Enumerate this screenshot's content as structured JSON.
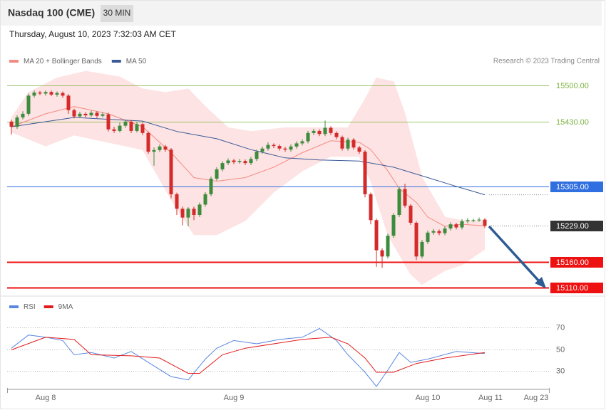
{
  "chart_data": [
    {
      "type": "candlestick",
      "title": "Nasdaq 100 (CME)",
      "interval": "30 MIN",
      "subtitle": "Thursday, August 10, 2023 7:32:03 AM CET",
      "source": "Research © 2023 Trading Central",
      "categories": [
        null,
        null,
        null,
        null,
        null,
        null,
        "Aug 8",
        null,
        null,
        null,
        null,
        null,
        null,
        null,
        null,
        null,
        null,
        null,
        null,
        null,
        null,
        null,
        null,
        null,
        null,
        null,
        null,
        null,
        null,
        null,
        null,
        null,
        null,
        null,
        null,
        null,
        null,
        null,
        null,
        "Aug 9",
        null,
        null,
        null,
        null,
        null,
        null,
        null,
        null,
        null,
        null,
        null,
        null,
        null,
        null,
        null,
        null,
        null,
        null,
        null,
        null,
        null,
        null,
        null,
        null,
        null,
        null,
        null,
        null,
        null,
        null,
        null,
        null,
        null,
        "Aug 10",
        null,
        null,
        null,
        null,
        null,
        null,
        null,
        null,
        null,
        null,
        "Aug 11",
        null,
        null,
        null,
        null,
        null,
        null,
        null,
        "Aug 23"
      ],
      "open": [
        15430,
        15420,
        15438,
        15445,
        15480,
        15486,
        15484,
        15487,
        15482,
        15485,
        15480,
        15452,
        15440,
        15445,
        15442,
        15447,
        15441,
        15444,
        15415,
        15412,
        15422,
        15430,
        15412,
        15425,
        15408,
        15372,
        15375,
        15382,
        15376,
        15290,
        15262,
        15245,
        15262,
        15250,
        15270,
        15290,
        15320,
        15338,
        15350,
        15355,
        15352,
        15354,
        15350,
        15358,
        15372,
        15378,
        15385,
        15383,
        15378,
        15376,
        15382,
        15388,
        15392,
        15408,
        15412,
        15406,
        15418,
        15408,
        15400,
        15378,
        15395,
        15380,
        15372,
        15290,
        15240,
        15182,
        15170,
        15210,
        15250,
        15300,
        15268,
        15235,
        15170,
        15198,
        15216,
        15219,
        15215,
        15224,
        15232,
        15226,
        15238,
        15240,
        15240,
        15241,
        null,
        null,
        null,
        null,
        null,
        null,
        null,
        null,
        null
      ],
      "high": [
        15434,
        15442,
        15450,
        15484,
        15490,
        15489,
        15490,
        15490,
        15488,
        15488,
        15483,
        15455,
        15449,
        15448,
        15451,
        15450,
        15448,
        15447,
        15420,
        15428,
        15434,
        15433,
        15429,
        15428,
        15411,
        15380,
        15386,
        15385,
        15379,
        15293,
        15266,
        15265,
        15266,
        15274,
        15294,
        15324,
        15342,
        15354,
        15359,
        15358,
        15358,
        15357,
        15362,
        15376,
        15382,
        15390,
        15388,
        15386,
        15381,
        15386,
        15392,
        15396,
        15412,
        15416,
        15415,
        15432,
        15421,
        15411,
        15403,
        15399,
        15398,
        15383,
        15375,
        15293,
        15243,
        15186,
        15214,
        15254,
        15304,
        15310,
        15271,
        15238,
        15202,
        15220,
        15223,
        15222,
        15228,
        15236,
        15235,
        15242,
        15244,
        15243,
        15245,
        15244,
        null,
        null,
        null,
        null,
        null,
        null,
        null,
        null,
        null
      ],
      "low": [
        15405,
        15416,
        15434,
        15441,
        15476,
        15481,
        15480,
        15479,
        15478,
        15476,
        15445,
        15436,
        15437,
        15438,
        15439,
        15437,
        15438,
        15411,
        15408,
        15409,
        15418,
        15408,
        15409,
        15404,
        15368,
        15345,
        15371,
        15372,
        15282,
        15250,
        15230,
        15228,
        15240,
        15246,
        15266,
        15286,
        15316,
        15334,
        15346,
        15348,
        15349,
        15346,
        15346,
        15354,
        15368,
        15374,
        15379,
        15374,
        15372,
        15372,
        15378,
        15384,
        15388,
        15404,
        15402,
        15402,
        15404,
        15396,
        15374,
        15374,
        15376,
        15368,
        15284,
        15232,
        15150,
        15148,
        15166,
        15206,
        15246,
        15264,
        15231,
        15163,
        15166,
        15194,
        15212,
        15211,
        15211,
        15220,
        15222,
        15222,
        15234,
        15236,
        15237,
        15225,
        null,
        null,
        null,
        null,
        null,
        null,
        null,
        null,
        null
      ],
      "close": [
        15420,
        15438,
        15445,
        15480,
        15486,
        15484,
        15487,
        15482,
        15485,
        15480,
        15452,
        15440,
        15445,
        15442,
        15447,
        15441,
        15444,
        15415,
        15412,
        15422,
        15430,
        15412,
        15425,
        15408,
        15372,
        15375,
        15382,
        15376,
        15290,
        15262,
        15245,
        15262,
        15250,
        15270,
        15290,
        15320,
        15338,
        15350,
        15355,
        15352,
        15354,
        15350,
        15358,
        15372,
        15378,
        15385,
        15383,
        15378,
        15376,
        15382,
        15388,
        15392,
        15408,
        15412,
        15406,
        15418,
        15408,
        15400,
        15378,
        15395,
        15380,
        15372,
        15290,
        15240,
        15182,
        15170,
        15210,
        15250,
        15300,
        15268,
        15235,
        15170,
        15198,
        15216,
        15219,
        15215,
        15224,
        15232,
        15226,
        15238,
        15240,
        15240,
        15241,
        15229,
        null,
        null,
        null,
        null,
        null,
        null,
        null,
        null,
        null
      ],
      "up_color": "#3d8b3d",
      "down_color": "#d42a2a",
      "overlays": [
        {
          "name": "MA 20 + Bollinger Bands",
          "color": "#f28b82",
          "x": [
            0,
            6,
            11,
            17,
            23,
            28,
            32,
            36,
            41,
            46,
            51,
            56,
            61,
            63,
            66,
            68,
            71,
            73,
            76,
            79,
            83
          ],
          "values": [
            15420,
            15445,
            15459,
            15445,
            15420,
            15370,
            15322,
            15315,
            15322,
            15342,
            15370,
            15393,
            15390,
            15376,
            15335,
            15301,
            15274,
            15246,
            15228,
            15232,
            15229
          ]
        },
        {
          "name": "MA 50",
          "color": "#3b5998",
          "x": [
            0,
            11,
            23,
            29,
            36,
            42,
            48,
            54,
            61,
            67,
            73,
            78,
            83
          ],
          "values": [
            15420,
            15438,
            15431,
            15411,
            15397,
            15376,
            15360,
            15356,
            15354,
            15342,
            15322,
            15305,
            15289
          ]
        }
      ],
      "bands": {
        "color": "#fde3e3",
        "upper": {
          "x": [
            0,
            3,
            8,
            13,
            19,
            23,
            27,
            31,
            34,
            38,
            42,
            48,
            54,
            59,
            62,
            64,
            67,
            69,
            72,
            76,
            79,
            83
          ],
          "values": [
            15437,
            15486,
            15514,
            15527,
            15516,
            15493,
            15486,
            15493,
            15459,
            15418,
            15411,
            15418,
            15418,
            15418,
            15473,
            15514,
            15507,
            15445,
            15322,
            15246,
            15239,
            15239
          ]
        },
        "lower": {
          "x": [
            0,
            6,
            11,
            17,
            23,
            28,
            32,
            36,
            41,
            46,
            51,
            56,
            61,
            63,
            66,
            70,
            72,
            76,
            79,
            83
          ],
          "values": [
            15410,
            15383,
            15404,
            15390,
            15376,
            15280,
            15212,
            15212,
            15239,
            15294,
            15335,
            15363,
            15363,
            15315,
            15212,
            15136,
            15116,
            15143,
            15154,
            15184
          ]
        }
      },
      "ylim": [
        15095,
        15582
      ],
      "yticks": [
        {
          "value": 15500,
          "label": "15500.00"
        },
        {
          "value": 15430,
          "label": "15430.00"
        },
        {
          "value": 15305,
          "label": "15305.00"
        },
        {
          "value": 15229,
          "label": "15229.00"
        },
        {
          "value": 15160,
          "label": "15160.00"
        },
        {
          "value": 15110,
          "label": "15110.00"
        }
      ],
      "ytick_colors": [
        "#7cb342",
        "#7cb342",
        "#2f6fe0",
        "#333333",
        "#ee1111",
        "#ee1111"
      ],
      "ytick_styles": [
        "text",
        "text",
        "box",
        "box",
        "box",
        "box"
      ],
      "ytick_lines": [
        "thin",
        "thin",
        "solid",
        "dotted",
        "thick",
        "thick"
      ]
    },
    {
      "type": "line",
      "series": [
        {
          "name": "RSI",
          "color": "#5b87e0",
          "x": [
            0,
            3,
            6,
            9,
            11,
            14,
            18,
            21,
            24,
            28,
            31,
            34,
            36,
            39,
            43,
            47,
            51,
            54,
            57,
            59,
            62,
            64,
            66,
            68,
            70,
            73,
            78,
            83
          ],
          "values": [
            51,
            63,
            61,
            58,
            45,
            47,
            42,
            48,
            38,
            25,
            22,
            41,
            51,
            58,
            55,
            59,
            61,
            69,
            58,
            45,
            29,
            16,
            31,
            47,
            38,
            41,
            48,
            46
          ]
        },
        {
          "name": "9MA",
          "color": "#e31a1a",
          "x": [
            0,
            6,
            11,
            14,
            21,
            26,
            31,
            33,
            37,
            41,
            46,
            51,
            56,
            59,
            62,
            64,
            67,
            71,
            76,
            83
          ],
          "values": [
            49.5,
            61,
            59,
            45,
            44,
            42,
            28,
            28,
            45,
            51,
            55,
            59,
            61,
            55,
            42,
            29,
            29,
            37,
            42,
            47
          ]
        }
      ],
      "ylim": [
        14,
        83
      ],
      "yticks": [
        70,
        50,
        30
      ],
      "grid": true
    }
  ]
}
